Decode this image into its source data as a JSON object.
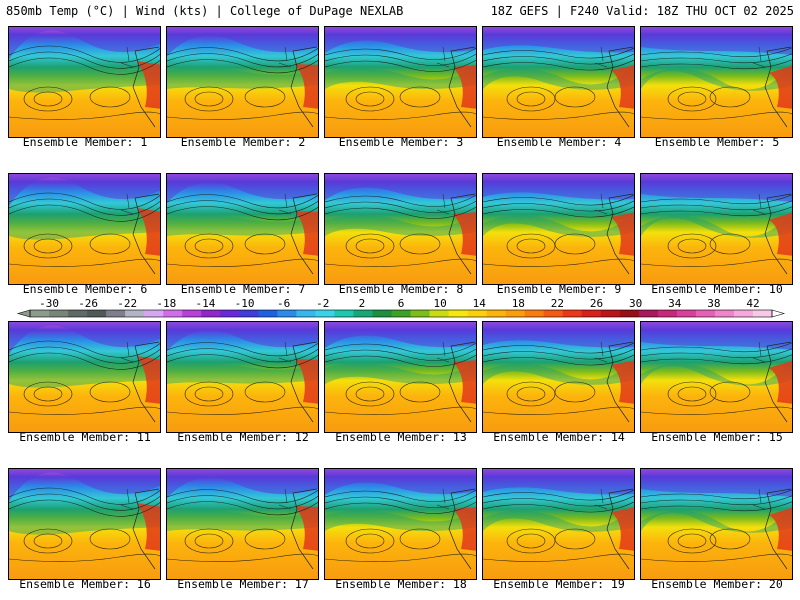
{
  "header": {
    "left": "850mb Temp (°C) | Wind (kts) | College of DuPage NEXLAB",
    "right": "18Z GEFS | F240 Valid: 18Z THU OCT 02 2025"
  },
  "members": [
    "Ensemble Member: 1",
    "Ensemble Member: 2",
    "Ensemble Member: 3",
    "Ensemble Member: 4",
    "Ensemble Member: 5",
    "Ensemble Member: 6",
    "Ensemble Member: 7",
    "Ensemble Member: 8",
    "Ensemble Member: 9",
    "Ensemble Member: 10",
    "Ensemble Member: 11",
    "Ensemble Member: 12",
    "Ensemble Member: 13",
    "Ensemble Member: 14",
    "Ensemble Member: 15",
    "Ensemble Member: 16",
    "Ensemble Member: 17",
    "Ensemble Member: 18",
    "Ensemble Member: 19",
    "Ensemble Member: 20"
  ],
  "colorbar": {
    "ticks": [
      "-30",
      "-26",
      "-22",
      "-18",
      "-14",
      "-10",
      "-6",
      "-2",
      "2",
      "6",
      "10",
      "14",
      "18",
      "22",
      "26",
      "30",
      "34",
      "38",
      "42"
    ],
    "colors": [
      "#8e9a8c",
      "#7a857a",
      "#5f6a66",
      "#4f5a58",
      "#7e7e8c",
      "#b3b3c6",
      "#d6a6f0",
      "#cf6fe8",
      "#b640d8",
      "#8e28c8",
      "#6a28d8",
      "#3e3ed8",
      "#1e60e0",
      "#2c8ae8",
      "#38b6ee",
      "#3cd2e6",
      "#1cc8b0",
      "#18a878",
      "#1c9040",
      "#3ea028",
      "#7cbc1c",
      "#c8dc10",
      "#f4e80c",
      "#fcd00c",
      "#fcb40c",
      "#fc9c0c",
      "#f87c10",
      "#f45a14",
      "#ec3818",
      "#d8201c",
      "#b8161a",
      "#961014",
      "#a8185a",
      "#c8287c",
      "#d8409c",
      "#e660b8",
      "#ee84cc",
      "#f4a8dc",
      "#f8c8e8"
    ]
  }
}
